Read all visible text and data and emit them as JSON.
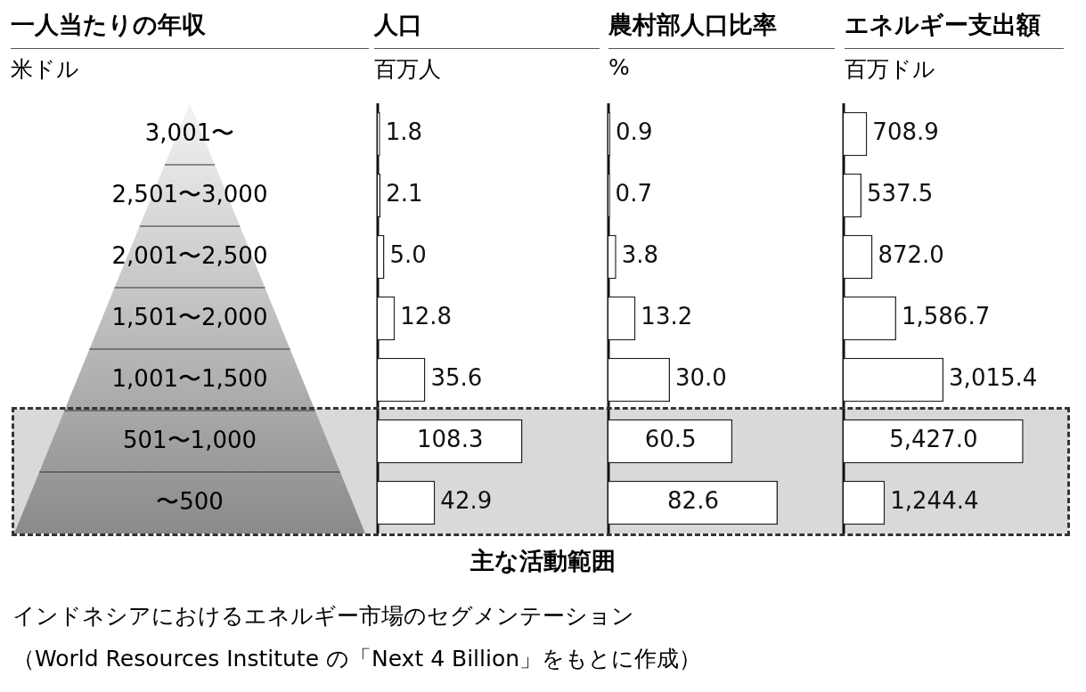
{
  "chart_data": [
    {
      "type": "other",
      "title": "一人当たりの年収",
      "subtitle": "米ドル",
      "categories": [
        "3,001〜",
        "2,501〜3,000",
        "2,001〜2,500",
        "1,501〜2,000",
        "1,001〜1,500",
        "501〜1,000",
        "〜500"
      ],
      "annotations": [
        "主な活動範囲",
        "インドネシアにおけるエネルギー市場のセグメンテーション",
        "（World Resources Institute の「Next 4 Billion」をもとに作成）"
      ]
    },
    {
      "type": "bar",
      "orientation": "horizontal",
      "title": "人口",
      "subtitle": "百万人",
      "categories": [
        "3,001〜",
        "2,501〜3,000",
        "2,001〜2,500",
        "1,501〜2,000",
        "1,001〜1,500",
        "501〜1,000",
        "〜500"
      ],
      "color": "#ffffff",
      "values": [
        1.8,
        2.1,
        5.0,
        12.8,
        35.6,
        108.3,
        42.9
      ],
      "value_labels": [
        "1.8",
        "2.1",
        "5.0",
        "12.8",
        "35.6",
        "108.3",
        "42.9"
      ],
      "bands": [
        {
          "axis": "y",
          "from": "501〜1,000",
          "to": "〜500",
          "color": "#d9d9d9"
        }
      ],
      "tick_labels": false
    },
    {
      "type": "bar",
      "orientation": "horizontal",
      "title": "農村部人口比率",
      "subtitle": "%",
      "categories": [
        "3,001〜",
        "2,501〜3,000",
        "2,001〜2,500",
        "1,501〜2,000",
        "1,001〜1,500",
        "501〜1,000",
        "〜500"
      ],
      "color": "#ffffff",
      "values": [
        0.9,
        0.7,
        3.8,
        13.2,
        30.0,
        60.5,
        82.6
      ],
      "value_labels": [
        "0.9",
        "0.7",
        "3.8",
        "13.2",
        "30.0",
        "60.5",
        "82.6"
      ],
      "bands": [
        {
          "axis": "y",
          "from": "501〜1,000",
          "to": "〜500",
          "color": "#d9d9d9"
        }
      ],
      "tick_labels": false
    },
    {
      "type": "bar",
      "orientation": "horizontal",
      "title": "エネルギー支出額",
      "subtitle": "百万ドル",
      "categories": [
        "3,001〜",
        "2,501〜3,000",
        "2,001〜2,500",
        "1,501〜2,000",
        "1,001〜1,500",
        "501〜1,000",
        "〜500"
      ],
      "color": "#ffffff",
      "values": [
        708.9,
        537.5,
        872.0,
        1586.7,
        3015.4,
        5427.0,
        1244.4
      ],
      "value_labels": [
        "708.9",
        "537.5",
        "872.0",
        "1,586.7",
        "3,015.4",
        "5,427.0",
        "1,244.4"
      ],
      "bands": [
        {
          "axis": "y",
          "from": "501〜1,000",
          "to": "〜500",
          "color": "#d9d9d9"
        }
      ],
      "tick_labels": false
    }
  ]
}
